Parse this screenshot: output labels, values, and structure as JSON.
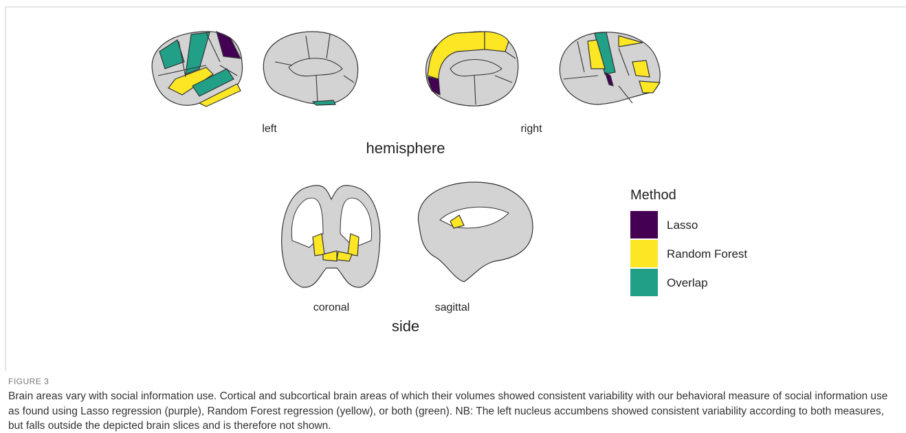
{
  "figure": {
    "hemisphere_views": {
      "left_label": "left",
      "right_label": "right",
      "title": "hemisphere"
    },
    "side_views": {
      "coronal_label": "coronal",
      "sagittal_label": "sagittal",
      "title": "side"
    },
    "legend": {
      "title": "Method",
      "items": [
        {
          "name": "Lasso",
          "color": "#440154"
        },
        {
          "name": "Random Forest",
          "color": "#fde725"
        },
        {
          "name": "Overlap",
          "color": "#21a087"
        }
      ]
    },
    "caption": {
      "label": "FIGURE 3",
      "title": "Brain areas vary with social information use.",
      "text": "Cortical and subcortical brain areas of which their volumes showed consistent variability with our behavioral measure of social information use as found using Lasso regression (purple), Random Forest regression (yellow), or both (green). NB: The left nucleus accumbens showed consistent variability according to both measures, but falls outside the depicted brain slices and is therefore not shown."
    }
  }
}
